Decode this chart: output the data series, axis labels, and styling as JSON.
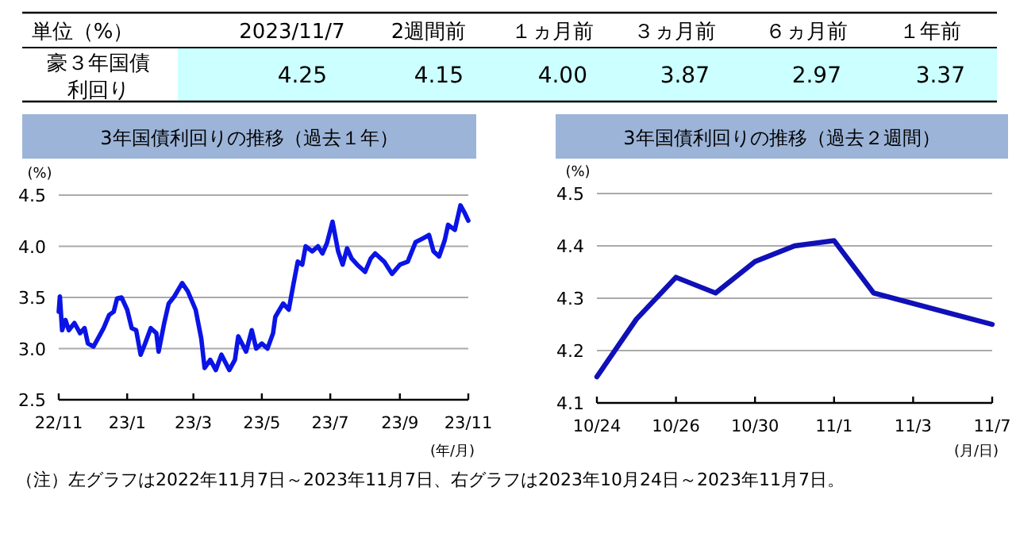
{
  "chart_data": [
    {
      "type": "other",
      "title": "単位（%）",
      "categories": [
        "2023/11/7",
        "2週間前",
        "１ヵ月前",
        "３ヵ月前",
        "６ヵ月前",
        "１年前"
      ],
      "series": [
        {
          "name": "豪３年国債利回り",
          "color": "#ccffff",
          "values": [
            4.25,
            4.15,
            4.0,
            3.87,
            2.97,
            3.37
          ],
          "value_labels": [
            "4.25",
            "4.15",
            "4.00",
            "3.87",
            "2.97",
            "3.37"
          ]
        }
      ]
    },
    {
      "type": "line",
      "title": "3年国債利回りの推移（過去１年）",
      "ylabel": "(%)",
      "xlabel": "(年/月)",
      "x": [
        "2022-11-07",
        "2022-11-08",
        "2022-11-10",
        "2022-11-13",
        "2022-11-16",
        "2022-11-21",
        "2022-11-26",
        "2022-11-30",
        "2022-12-03",
        "2022-12-08",
        "2022-12-12",
        "2022-12-17",
        "2022-12-22",
        "2022-12-26",
        "2022-12-29",
        "2023-01-02",
        "2023-01-07",
        "2023-01-11",
        "2023-01-15",
        "2023-01-19",
        "2023-01-23",
        "2023-01-28",
        "2023-02-02",
        "2023-02-04",
        "2023-02-09",
        "2023-02-13",
        "2023-02-18",
        "2023-02-25",
        "2023-03-02",
        "2023-03-09",
        "2023-03-14",
        "2023-03-17",
        "2023-03-22",
        "2023-03-27",
        "2023-04-01",
        "2023-04-08",
        "2023-04-13",
        "2023-04-16",
        "2023-04-23",
        "2023-04-28",
        "2023-05-02",
        "2023-05-07",
        "2023-05-12",
        "2023-05-17",
        "2023-05-19",
        "2023-05-26",
        "2023-05-31",
        "2023-06-04",
        "2023-06-08",
        "2023-06-12",
        "2023-06-15",
        "2023-06-21",
        "2023-06-26",
        "2023-06-30",
        "2023-07-04",
        "2023-07-09",
        "2023-07-14",
        "2023-07-18",
        "2023-07-22",
        "2023-07-26",
        "2023-07-31",
        "2023-08-07",
        "2023-08-12",
        "2023-08-16",
        "2023-08-24",
        "2023-08-31",
        "2023-09-07",
        "2023-09-14",
        "2023-09-21",
        "2023-09-28",
        "2023-10-03",
        "2023-10-07",
        "2023-10-12",
        "2023-10-17",
        "2023-10-20",
        "2023-10-26",
        "2023-10-31",
        "2023-11-04",
        "2023-11-07"
      ],
      "series": [
        {
          "color": "#0a14e6",
          "values": [
            3.36,
            3.51,
            3.18,
            3.28,
            3.18,
            3.25,
            3.15,
            3.2,
            3.05,
            3.02,
            3.1,
            3.2,
            3.33,
            3.36,
            3.49,
            3.5,
            3.38,
            3.2,
            3.18,
            2.94,
            3.05,
            3.2,
            3.15,
            2.97,
            3.25,
            3.44,
            3.51,
            3.64,
            3.56,
            3.38,
            3.1,
            2.81,
            2.89,
            2.79,
            2.94,
            2.79,
            2.89,
            3.12,
            2.97,
            3.18,
            3.0,
            3.05,
            3.0,
            3.15,
            3.31,
            3.44,
            3.38,
            3.62,
            3.85,
            3.82,
            4.0,
            3.95,
            4.0,
            3.93,
            4.03,
            4.24,
            3.95,
            3.82,
            3.98,
            3.88,
            3.82,
            3.75,
            3.88,
            3.93,
            3.85,
            3.73,
            3.82,
            3.85,
            4.04,
            4.08,
            4.11,
            3.95,
            3.9,
            4.06,
            4.21,
            4.16,
            4.4,
            4.32,
            4.25
          ]
        }
      ],
      "xlim": [
        "2022-11-07",
        "2023-11-07"
      ],
      "xticks": [
        {
          "value": "2022-11-07",
          "label": "22/11"
        },
        {
          "value": "2023-01-07",
          "label": "23/1"
        },
        {
          "value": "2023-03-07",
          "label": "23/3"
        },
        {
          "value": "2023-05-07",
          "label": "23/5"
        },
        {
          "value": "2023-07-07",
          "label": "23/7"
        },
        {
          "value": "2023-09-07",
          "label": "23/9"
        },
        {
          "value": "2023-11-07",
          "label": "23/11"
        }
      ],
      "ylim": [
        2.5,
        4.5
      ],
      "yticks": [
        {
          "value": 2.5,
          "label": "2.5"
        },
        {
          "value": 3,
          "label": "3.0"
        },
        {
          "value": 3.5,
          "label": "3.5"
        },
        {
          "value": 4,
          "label": "4.0"
        },
        {
          "value": 4.5,
          "label": "4.5"
        }
      ],
      "grid": "y"
    },
    {
      "type": "line",
      "title": "3年国債利回りの推移（過去２週間）",
      "ylabel": "(%)",
      "xlabel": "(月/日)",
      "categories": [
        "10/24",
        null,
        "10/26",
        null,
        "10/30",
        null,
        "11/1",
        null,
        "11/3",
        null,
        "11/7"
      ],
      "series": [
        {
          "color": "#1010b8",
          "values": [
            4.15,
            4.26,
            4.34,
            4.31,
            4.37,
            4.4,
            4.41,
            4.31,
            4.29,
            4.27,
            4.25
          ]
        }
      ],
      "ylim": [
        4.1,
        4.5
      ],
      "yticks": [
        4.1,
        4.2,
        4.3,
        4.4,
        4.5
      ],
      "grid": "y",
      "annotations": [
        "（注）左グラフは2022年11月7日～2023年11月7日、右グラフは2023年10月24日～2023年11月7日。"
      ]
    }
  ]
}
